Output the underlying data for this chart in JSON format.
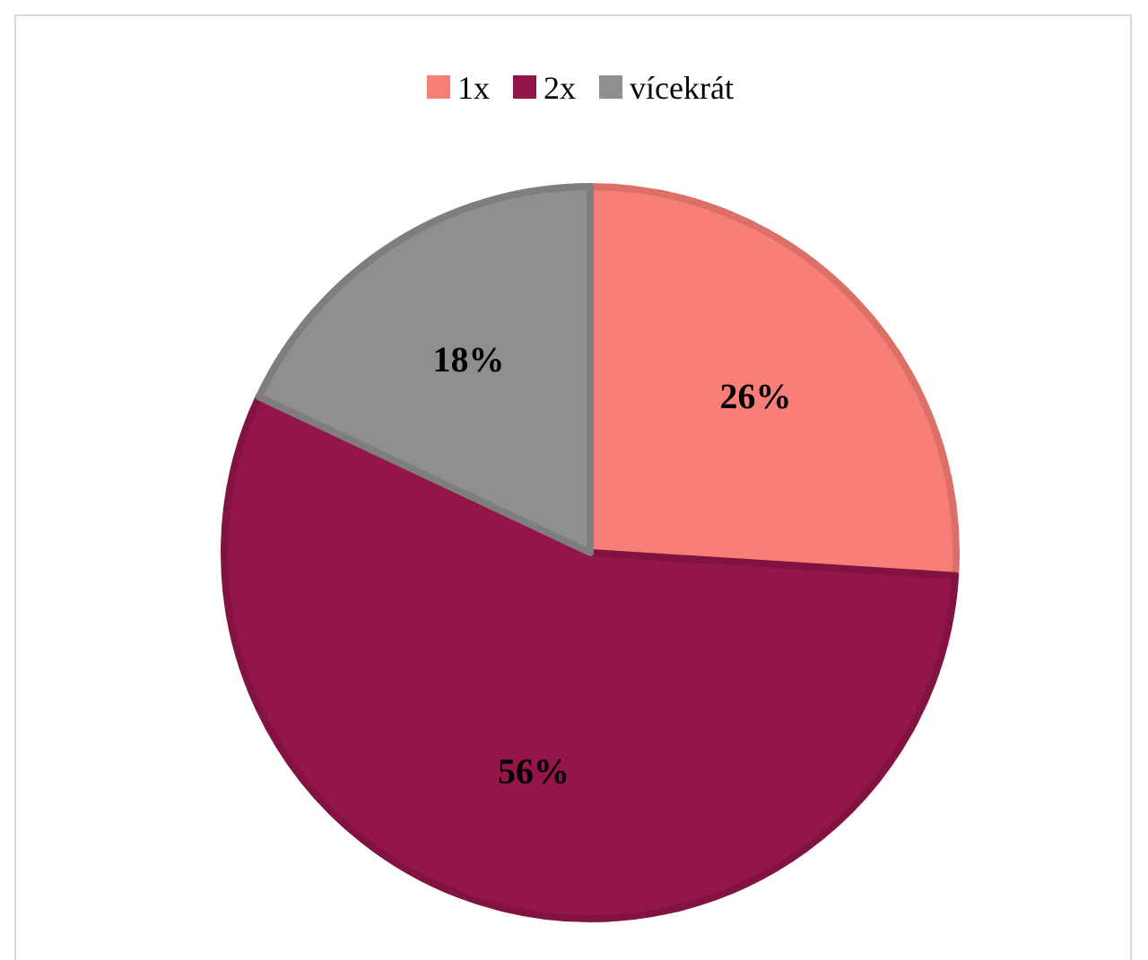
{
  "chart_data": {
    "type": "pie",
    "categories": [
      "1x",
      "2x",
      "vícekrát"
    ],
    "values": [
      26,
      56,
      18
    ],
    "colors": [
      "#f87f77",
      "#93154a",
      "#8f8f8f"
    ],
    "value_labels": [
      "26%",
      "56%",
      "18%"
    ],
    "legend": "top"
  }
}
